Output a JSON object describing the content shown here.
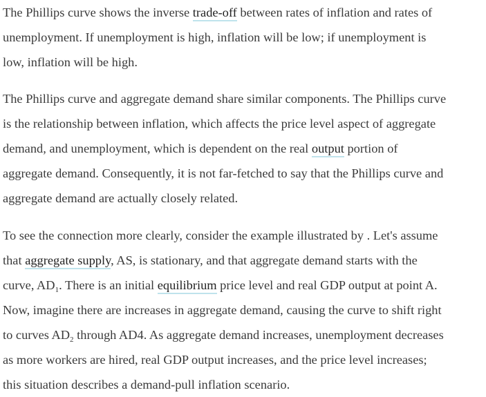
{
  "paragraphs": [
    {
      "lines": [
        {
          "before": "The Phillips curve shows the inverse ",
          "link": "trade-off",
          "after": " between rates of inflation and rates of"
        },
        {
          "text": "unemployment. If unemployment is high, inflation will be low; if unemployment is"
        },
        {
          "text": "low, inflation will be high."
        }
      ]
    },
    {
      "lines": [
        {
          "text": "The Phillips curve and aggregate demand share similar components. The Phillips curve"
        },
        {
          "text": "is the relationship between inflation, which affects the price level aspect of aggregate"
        },
        {
          "before": "demand, and unemployment, which is dependent on the real ",
          "link": "output",
          "after": " portion of"
        },
        {
          "text": "aggregate demand. Consequently, it is not far-fetched to say that the Phillips curve and"
        },
        {
          "text": "aggregate demand are actually closely related."
        }
      ]
    },
    {
      "lines": [
        {
          "text": "To see the connection more clearly, consider the example illustrated by . Let's assume"
        },
        {
          "before": "that ",
          "link": "aggregate supply",
          "after": ", AS, is stationary, and that aggregate demand starts with the"
        },
        {
          "a": "curve, AD",
          "sub": "1",
          "b": ". There is an initial ",
          "link": "equilibrium",
          "c": " price level and real GDP output at point A."
        },
        {
          "text": "Now, imagine there are increases in aggregate demand, causing the curve to shift right"
        },
        {
          "a": "to curves AD",
          "sub": "2",
          "b": " through AD4. As aggregate demand increases, unemployment decreases"
        },
        {
          "text": "as more workers are hired, real GDP output increases, and the price level increases;"
        },
        {
          "text": "this situation describes a demand-pull inflation scenario."
        }
      ]
    }
  ]
}
